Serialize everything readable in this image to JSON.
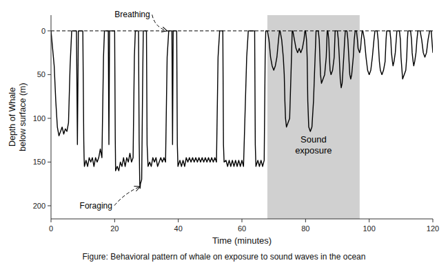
{
  "chart_data": {
    "type": "line",
    "x_label": "Time (minutes)",
    "y_label": "Depth of Whale\nbelow surface (m)",
    "caption": "Figure: Behavioral pattern of whale on exposure to sound waves in the ocean",
    "xlim": [
      0,
      120
    ],
    "ylim": [
      215,
      -18
    ],
    "xticks": [
      0,
      20,
      40,
      60,
      80,
      100,
      120
    ],
    "yticks": [
      0,
      50,
      100,
      150,
      200
    ],
    "grid": false,
    "shaded_region": {
      "start": 68,
      "end": 97,
      "color": "#d0d0d0",
      "label": "Sound\nexposure",
      "label_y": 130
    },
    "reference_line": {
      "y": 0,
      "color": "#000000",
      "line_style": "dashed"
    },
    "annotations": [
      {
        "text": "Breathing",
        "x": 36.5,
        "y": 0,
        "text_x": 20,
        "text_y": -13,
        "line_style": "dashed"
      },
      {
        "text": "Foraging",
        "x": 28.0,
        "y": 178,
        "text_x": 9,
        "text_y": 195,
        "line_style": "dashed"
      }
    ],
    "x": [
      0,
      1.0,
      1.5,
      2.0,
      2.5,
      3.0,
      3.5,
      4.0,
      4.5,
      5.0,
      5.5,
      6.0,
      6.5,
      7.0,
      8.0,
      8.3,
      8.6,
      9.0,
      10.0,
      10.3,
      10.4,
      10.5,
      11.0,
      11.5,
      12.0,
      12.5,
      13.0,
      13.5,
      14.0,
      14.5,
      15.0,
      15.5,
      16.0,
      16.5,
      16.8,
      17.5,
      18.0,
      18.2,
      18.4,
      19.0,
      20.0,
      20.2,
      20.25,
      20.3,
      20.8,
      21.3,
      21.8,
      22.3,
      22.8,
      23.3,
      23.8,
      24.3,
      24.8,
      25.3,
      25.8,
      26.2,
      26.5,
      27.0,
      27.5,
      27.7,
      27.9,
      28.0,
      28.1,
      28.5,
      28.8,
      29.0,
      29.5,
      30.0,
      30.2,
      30.5,
      31.0,
      31.5,
      32.0,
      32.5,
      33.0,
      33.5,
      34.0,
      34.5,
      35.0,
      35.5,
      36.0,
      36.5,
      37.0,
      37.5,
      38.0,
      38.2,
      38.4,
      39.0,
      39.5,
      39.7,
      39.9,
      40.5,
      41.0,
      41.5,
      42.0,
      42.5,
      43.0,
      43.5,
      44.0,
      44.5,
      45.0,
      45.5,
      46.0,
      46.5,
      47.0,
      47.5,
      48.0,
      48.5,
      49.0,
      49.5,
      50.0,
      50.5,
      51.0,
      51.5,
      52.0,
      52.5,
      53.0,
      53.5,
      54.0,
      54.2,
      54.4,
      55.0,
      55.5,
      56.0,
      56.5,
      57.0,
      57.5,
      58.0,
      58.5,
      59.0,
      59.5,
      60.0,
      60.5,
      61.5,
      62.0,
      63.0,
      64.0,
      64.2,
      64.4,
      65.0,
      65.5,
      66.0,
      66.5,
      67.0,
      67.3,
      67.5,
      68.0,
      68.5,
      69.0,
      69.5,
      70.0,
      70.5,
      71.0,
      71.5,
      71.8,
      72.0,
      72.5,
      73.0,
      73.3,
      73.5,
      73.7,
      74.0,
      74.5,
      75.0,
      75.5,
      75.8,
      76.0,
      76.5,
      77.0,
      77.5,
      78.0,
      78.5,
      79.0,
      79.5,
      79.8,
      80.0,
      80.3,
      80.5,
      80.7,
      81.0,
      81.5,
      82.0,
      82.5,
      83.0,
      83.3,
      84.0,
      84.3,
      84.5,
      84.7,
      85.0,
      85.5,
      86.0,
      86.5,
      86.8,
      87.0,
      87.3,
      87.5,
      87.7,
      88.0,
      88.5,
      89.0,
      89.3,
      90.0,
      90.3,
      90.6,
      90.9,
      91.2,
      91.5,
      92.0,
      92.3,
      92.5,
      93.0,
      93.3,
      93.6,
      93.9,
      94.2,
      94.5,
      95.0,
      95.3,
      95.6,
      96.0,
      96.3,
      96.5,
      97.0,
      97.3,
      97.5,
      97.8,
      98.0,
      98.5,
      99.0,
      99.5,
      100.0,
      100.5,
      101.0,
      101.5,
      101.8,
      102.5,
      102.8,
      103.2,
      103.5,
      104.0,
      104.5,
      105.0,
      105.3,
      105.5,
      106.5,
      106.8,
      107.0,
      107.3,
      107.5,
      107.8,
      108.2,
      108.5,
      108.7,
      109.5,
      109.8,
      110.0,
      110.3,
      110.5,
      111.0,
      111.5,
      111.8,
      112.0,
      112.2,
      113.0,
      113.3,
      113.5,
      113.8,
      114.0,
      114.3,
      114.7,
      115.0,
      115.3,
      116.0,
      116.5,
      117.0,
      117.5,
      118.0,
      118.5,
      119.0,
      119.5,
      120.0
    ],
    "series": [
      {
        "color": "#000000",
        "line_style": "solid",
        "values": [
          0,
          40,
          80,
          110,
          120,
          115,
          110,
          118,
          112,
          115,
          105,
          40,
          0,
          0,
          0,
          130,
          0,
          0,
          0,
          125,
          145,
          155,
          148,
          155,
          145,
          150,
          145,
          155,
          145,
          150,
          145,
          135,
          145,
          30,
          0,
          0,
          0,
          130,
          0,
          0,
          0,
          125,
          140,
          160,
          155,
          160,
          150,
          155,
          145,
          155,
          145,
          150,
          140,
          150,
          145,
          30,
          0,
          0,
          0,
          125,
          175,
          180,
          175,
          170,
          60,
          0,
          0,
          0,
          130,
          155,
          150,
          155,
          145,
          150,
          145,
          155,
          150,
          145,
          150,
          145,
          150,
          30,
          0,
          0,
          0,
          130,
          0,
          0,
          0,
          130,
          155,
          148,
          155,
          148,
          155,
          145,
          150,
          145,
          150,
          145,
          150,
          145,
          150,
          145,
          150,
          145,
          150,
          145,
          150,
          145,
          150,
          145,
          150,
          145,
          150,
          30,
          0,
          0,
          0,
          130,
          150,
          148,
          155,
          148,
          155,
          148,
          155,
          148,
          155,
          148,
          155,
          148,
          155,
          30,
          0,
          0,
          0,
          130,
          155,
          148,
          155,
          148,
          155,
          148,
          30,
          0,
          0,
          10,
          30,
          40,
          45,
          40,
          30,
          10,
          0,
          0,
          10,
          30,
          50,
          80,
          100,
          110,
          105,
          100,
          40,
          0,
          0,
          10,
          20,
          25,
          20,
          25,
          20,
          10,
          0,
          0,
          10,
          30,
          80,
          110,
          115,
          110,
          80,
          30,
          0,
          0,
          10,
          30,
          50,
          60,
          55,
          50,
          30,
          0,
          0,
          10,
          30,
          45,
          50,
          45,
          30,
          0,
          0,
          10,
          30,
          55,
          65,
          60,
          30,
          10,
          0,
          0,
          10,
          30,
          50,
          55,
          50,
          30,
          10,
          0,
          0,
          10,
          20,
          25,
          20,
          10,
          0,
          0,
          10,
          30,
          45,
          50,
          45,
          30,
          10,
          0,
          0,
          10,
          35,
          45,
          50,
          45,
          35,
          10,
          0,
          0,
          10,
          25,
          35,
          40,
          35,
          25,
          10,
          0,
          0,
          10,
          30,
          45,
          55,
          50,
          45,
          30,
          10,
          0,
          0,
          10,
          25,
          35,
          40,
          35,
          25,
          10,
          0,
          0,
          10,
          25,
          30,
          25,
          10,
          0,
          0,
          25
        ]
      }
    ]
  }
}
